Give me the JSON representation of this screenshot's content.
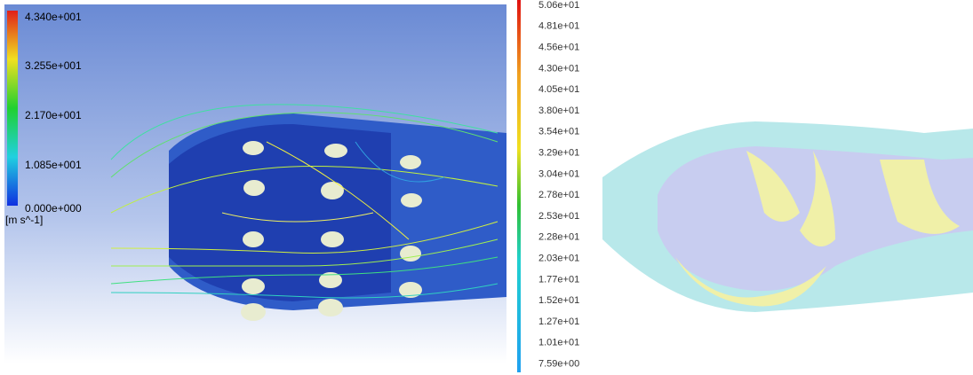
{
  "left_panel": {
    "legend": {
      "labels": [
        "4.340e+001",
        "3.255e+001",
        "2.170e+001",
        "1.085e+001",
        "0.000e+000"
      ],
      "unit": "[m s^-1]"
    }
  },
  "right_panel": {
    "legend": {
      "labels": [
        "5.06e+01",
        "4.81e+01",
        "4.56e+01",
        "4.30e+01",
        "4.05e+01",
        "3.80e+01",
        "3.54e+01",
        "3.29e+01",
        "3.04e+01",
        "2.78e+01",
        "2.53e+01",
        "2.28e+01",
        "2.03e+01",
        "1.77e+01",
        "1.52e+01",
        "1.27e+01",
        "1.01e+01",
        "7.59e+00"
      ]
    }
  }
}
